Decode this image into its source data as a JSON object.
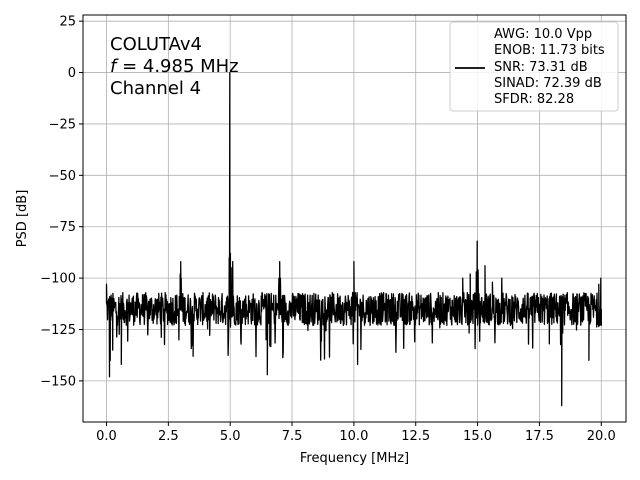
{
  "chart_data": {
    "type": "line",
    "xlabel": "Frequency [MHz]",
    "ylabel": "PSD [dB]",
    "xlim": [
      -0.95,
      21.0
    ],
    "ylim": [
      -170,
      28
    ],
    "xticks": [
      0.0,
      2.5,
      5.0,
      7.5,
      10.0,
      12.5,
      15.0,
      17.5,
      20.0
    ],
    "xtick_labels": [
      "0.0",
      "2.5",
      "5.0",
      "7.5",
      "10.0",
      "12.5",
      "15.0",
      "17.5",
      "20.0"
    ],
    "yticks": [
      25,
      0,
      -25,
      -50,
      -75,
      -100,
      -125,
      -150
    ],
    "ytick_labels": [
      "25",
      "0",
      "−25",
      "−50",
      "−75",
      "−100",
      "−125",
      "−150"
    ],
    "grid": true,
    "annotation": {
      "line1": "COLUTAv4",
      "line2_italic": "f",
      "line2_rest": " = 4.985 MHz",
      "line3": "Channel 4"
    },
    "legend": {
      "placement": "top-right",
      "entries": [
        "AWG: 10.0 Vpp",
        "ENOB: 11.73 bits",
        "SNR: 73.31 dB",
        "SINAD: 72.39 dB",
        "SFDR: 82.28"
      ]
    },
    "series": [
      {
        "color": "#000000",
        "noise_floor_db": -115,
        "x_range": [
          0.0,
          20.0
        ],
        "x": [
          0.0,
          0.1,
          0.12,
          0.15,
          0.25,
          0.6,
          2.98,
          3.0,
          3.02,
          3.5,
          4.9,
          4.96,
          4.985,
          5.01,
          5.07,
          5.1,
          6.45,
          6.5,
          6.6,
          6.97,
          7.0,
          7.03,
          9.95,
          10.0,
          10.05,
          10.15,
          14.4,
          14.7,
          14.95,
          14.985,
          15.02,
          15.3,
          15.6,
          15.98,
          17.9,
          18.4,
          18.43,
          18.47,
          19.5,
          19.9,
          19.98,
          20.0
        ],
        "y": [
          -103,
          -110,
          -148,
          -140,
          -135,
          -142,
          -98,
          -92,
          -100,
          -138,
          -110,
          -90,
          0,
          -88,
          -95,
          -92,
          -130,
          -147,
          -133,
          -100,
          -92,
          -100,
          -107,
          -92,
          -107,
          -142,
          -100,
          -98,
          -97,
          -82,
          -96,
          -94,
          -102,
          -100,
          -132,
          -162,
          -112,
          -115,
          -140,
          -103,
          -100,
          -115
        ]
      }
    ]
  }
}
